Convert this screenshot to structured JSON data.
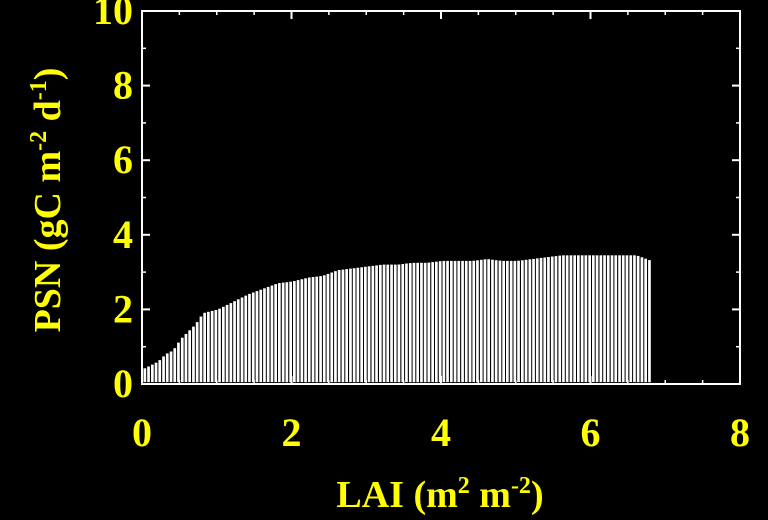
{
  "chart_data": {
    "type": "scatter",
    "xlabel": {
      "base": "LAI (m",
      "sup1": "2",
      "mid": " m",
      "sup2": "-2",
      "end": ")"
    },
    "ylabel": {
      "base": "PSN (gC m",
      "sup1": "-2",
      "mid": " d",
      "sup2": "-1",
      "end": ")"
    },
    "xlim": [
      0,
      8
    ],
    "ylim": [
      0,
      10
    ],
    "x_ticks": [
      "0",
      "2",
      "4",
      "6",
      "8"
    ],
    "y_ticks": [
      "0",
      "2",
      "4",
      "6",
      "8",
      "10"
    ],
    "grid": false,
    "background": "#000000",
    "axis_color": "#ffffff",
    "label_color": "#ffff00",
    "point_color": "#ffffff",
    "envelope": {
      "x": [
        0.0,
        0.1,
        0.2,
        0.3,
        0.4,
        0.5,
        0.6,
        0.7,
        0.8,
        0.9,
        1.0,
        1.2,
        1.4,
        1.6,
        1.8,
        2.0,
        2.2,
        2.4,
        2.6,
        2.8,
        3.0,
        3.2,
        3.4,
        3.6,
        3.8,
        4.0,
        4.2,
        4.4,
        4.6,
        4.8,
        5.0,
        5.2,
        5.4,
        5.6,
        5.8,
        6.0,
        6.2,
        6.4,
        6.6,
        6.8
      ],
      "y_max": [
        0.4,
        0.5,
        0.6,
        0.8,
        0.9,
        1.2,
        1.4,
        1.6,
        1.9,
        1.95,
        2.0,
        2.2,
        2.4,
        2.55,
        2.7,
        2.75,
        2.85,
        2.9,
        3.05,
        3.1,
        3.15,
        3.2,
        3.2,
        3.25,
        3.25,
        3.3,
        3.3,
        3.3,
        3.35,
        3.3,
        3.3,
        3.35,
        3.4,
        3.45,
        3.45,
        3.45,
        3.45,
        3.45,
        3.45,
        3.3
      ]
    }
  }
}
